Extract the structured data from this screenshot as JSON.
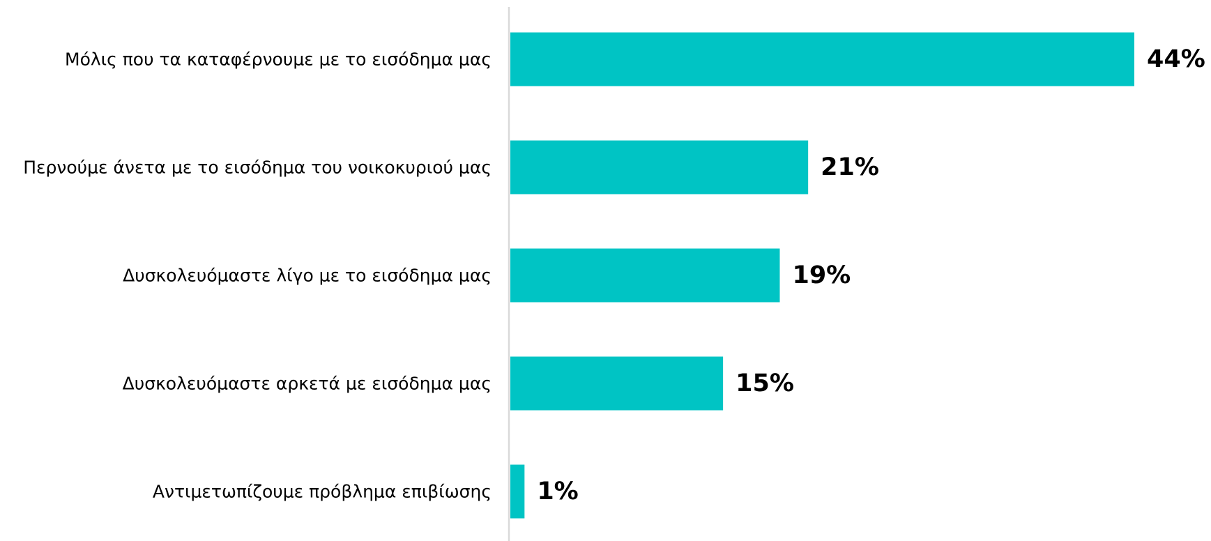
{
  "chart_data": {
    "type": "bar",
    "orientation": "horizontal",
    "categories": [
      "Μόλις που τα καταφέρνουμε με το εισόδημα μας",
      "Περνούμε άνετα με το εισόδημα του νοικοκυριού μας",
      "Δυσκολευόμαστε λίγο με το εισόδημα μας",
      "Δυσκολευόμαστε αρκετά με εισόδημα μας",
      "Αντιμετωπίζουμε πρόβλημα επιβίωσης"
    ],
    "values": [
      44,
      21,
      19,
      15,
      1
    ],
    "value_labels": [
      "44%",
      "21%",
      "19%",
      "15%",
      "1%"
    ],
    "unit": "%",
    "xlim": [
      0,
      44
    ],
    "title": "",
    "xlabel": "",
    "ylabel": "",
    "grid": false,
    "legend": "none",
    "bar_color": "#00C4C4",
    "axis_color": "#D9D9D9"
  }
}
